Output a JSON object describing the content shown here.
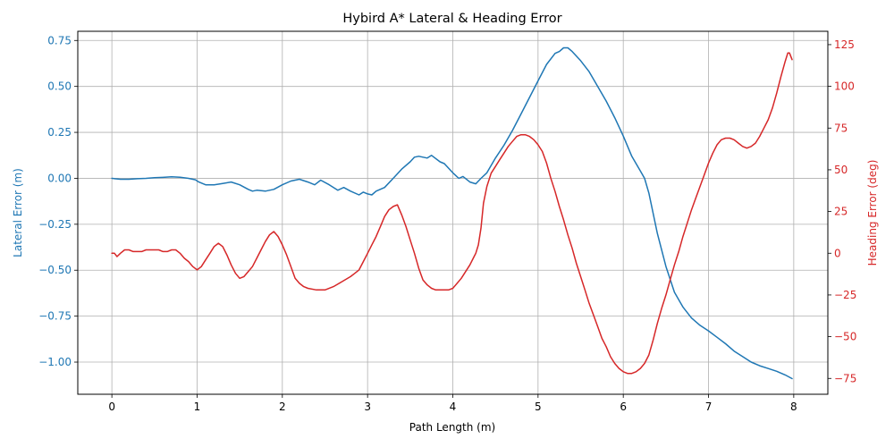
{
  "chart_data": {
    "type": "line",
    "title": "Hybird A* Lateral & Heading Error",
    "xlabel": "Path Length (m)",
    "ylabel_left": "Lateral Error (m)",
    "ylabel_right": "Heading Error (deg)",
    "xlim": [
      -0.4,
      8.4
    ],
    "ylim_left": [
      -1.175,
      0.8
    ],
    "ylim_right": [
      -84.5,
      133
    ],
    "xticks": [
      "0",
      "1",
      "2",
      "3",
      "4",
      "5",
      "6",
      "7",
      "8"
    ],
    "yticks_left": [
      "0.75",
      "0.50",
      "0.25",
      "0.00",
      "−0.25",
      "−0.50",
      "−0.75",
      "−1.00"
    ],
    "yticks_right": [
      "125",
      "100",
      "75",
      "50",
      "25",
      "0",
      "−25",
      "−50",
      "−75"
    ],
    "grid": true,
    "colors": {
      "lateral": "#1f77b4",
      "heading": "#d62728"
    },
    "series": [
      {
        "axis": "left",
        "x": [
          0,
          0.1,
          0.2,
          0.3,
          0.4,
          0.5,
          0.6,
          0.7,
          0.8,
          0.9,
          0.98,
          1.02,
          1.1,
          1.2,
          1.3,
          1.4,
          1.5,
          1.6,
          1.65,
          1.7,
          1.8,
          1.9,
          2.0,
          2.1,
          2.2,
          2.3,
          2.38,
          2.45,
          2.55,
          2.65,
          2.72,
          2.8,
          2.9,
          2.95,
          3.0,
          3.05,
          3.1,
          3.2,
          3.3,
          3.4,
          3.5,
          3.55,
          3.6,
          3.7,
          3.75,
          3.85,
          3.9,
          4.0,
          4.07,
          4.12,
          4.2,
          4.27,
          4.33,
          4.4,
          4.5,
          4.6,
          4.7,
          4.8,
          4.9,
          5.0,
          5.1,
          5.2,
          5.25,
          5.3,
          5.35,
          5.4,
          5.5,
          5.6,
          5.7,
          5.8,
          5.9,
          6.0,
          6.1,
          6.2,
          6.25,
          6.3,
          6.4,
          6.5,
          6.6,
          6.7,
          6.8,
          6.9,
          7.0,
          7.1,
          7.2,
          7.3,
          7.4,
          7.5,
          7.6,
          7.7,
          7.8,
          7.9,
          7.98
        ],
        "values": [
          0.0,
          -0.005,
          -0.005,
          -0.002,
          0.0,
          0.003,
          0.005,
          0.008,
          0.006,
          0.0,
          -0.008,
          -0.02,
          -0.035,
          -0.035,
          -0.028,
          -0.02,
          -0.035,
          -0.06,
          -0.07,
          -0.065,
          -0.07,
          -0.06,
          -0.035,
          -0.015,
          -0.005,
          -0.02,
          -0.035,
          -0.01,
          -0.035,
          -0.065,
          -0.05,
          -0.07,
          -0.09,
          -0.075,
          -0.085,
          -0.09,
          -0.07,
          -0.05,
          0.0,
          0.05,
          0.09,
          0.115,
          0.12,
          0.11,
          0.125,
          0.09,
          0.08,
          0.03,
          0.0,
          0.01,
          -0.02,
          -0.03,
          0.0,
          0.03,
          0.11,
          0.18,
          0.26,
          0.35,
          0.44,
          0.53,
          0.62,
          0.68,
          0.69,
          0.71,
          0.71,
          0.69,
          0.64,
          0.58,
          0.5,
          0.42,
          0.33,
          0.23,
          0.12,
          0.04,
          0.0,
          -0.08,
          -0.3,
          -0.48,
          -0.62,
          -0.7,
          -0.76,
          -0.8,
          -0.83,
          -0.865,
          -0.9,
          -0.94,
          -0.97,
          -1.0,
          -1.02,
          -1.035,
          -1.05,
          -1.07,
          -1.09
        ]
      },
      {
        "axis": "right",
        "x": [
          0,
          0.03,
          0.06,
          0.1,
          0.15,
          0.2,
          0.25,
          0.3,
          0.35,
          0.4,
          0.45,
          0.5,
          0.55,
          0.6,
          0.65,
          0.7,
          0.75,
          0.8,
          0.85,
          0.9,
          0.95,
          1.0,
          1.05,
          1.1,
          1.15,
          1.2,
          1.25,
          1.3,
          1.35,
          1.4,
          1.45,
          1.5,
          1.55,
          1.6,
          1.65,
          1.7,
          1.75,
          1.8,
          1.85,
          1.9,
          1.95,
          2.0,
          2.05,
          2.1,
          2.15,
          2.2,
          2.25,
          2.3,
          2.4,
          2.5,
          2.6,
          2.7,
          2.8,
          2.85,
          2.9,
          2.95,
          3.0,
          3.05,
          3.1,
          3.15,
          3.2,
          3.25,
          3.3,
          3.35,
          3.4,
          3.45,
          3.5,
          3.55,
          3.6,
          3.65,
          3.7,
          3.75,
          3.8,
          3.85,
          3.9,
          3.95,
          4.0,
          4.05,
          4.1,
          4.15,
          4.2,
          4.25,
          4.27,
          4.3,
          4.33,
          4.36,
          4.4,
          4.45,
          4.5,
          4.55,
          4.6,
          4.65,
          4.7,
          4.75,
          4.8,
          4.85,
          4.9,
          4.95,
          5.0,
          5.05,
          5.1,
          5.15,
          5.2,
          5.25,
          5.3,
          5.35,
          5.4,
          5.45,
          5.5,
          5.55,
          5.6,
          5.65,
          5.7,
          5.75,
          5.8,
          5.85,
          5.9,
          5.95,
          6.0,
          6.05,
          6.1,
          6.15,
          6.2,
          6.25,
          6.3,
          6.35,
          6.4,
          6.45,
          6.5,
          6.55,
          6.6,
          6.65,
          6.7,
          6.75,
          6.8,
          6.85,
          6.9,
          6.95,
          7.0,
          7.05,
          7.1,
          7.15,
          7.2,
          7.25,
          7.3,
          7.35,
          7.4,
          7.45,
          7.5,
          7.55,
          7.6,
          7.65,
          7.7,
          7.75,
          7.8,
          7.85,
          7.9,
          7.93,
          7.95,
          7.98
        ],
        "values": [
          0,
          0,
          -2,
          0,
          2,
          2,
          1,
          1,
          1,
          2,
          2,
          2,
          2,
          1,
          1,
          2,
          2,
          0,
          -3,
          -5,
          -8,
          -10,
          -8,
          -4,
          0,
          4,
          6,
          4,
          -1,
          -7,
          -12,
          -15,
          -14,
          -11,
          -8,
          -3,
          2,
          7,
          11,
          13,
          10,
          5,
          -1,
          -8,
          -15,
          -18,
          -20,
          -21,
          -22,
          -22,
          -20,
          -17,
          -14,
          -12,
          -10,
          -5,
          0,
          5,
          10,
          16,
          22,
          26,
          28,
          29,
          23,
          16,
          8,
          0,
          -9,
          -16,
          -19,
          -21,
          -22,
          -22,
          -22,
          -22,
          -21,
          -18,
          -15,
          -11,
          -7,
          -2,
          0,
          5,
          15,
          30,
          40,
          48,
          52,
          56,
          60,
          64,
          67,
          70,
          71,
          71,
          70,
          68,
          65,
          61,
          54,
          45,
          37,
          28,
          20,
          11,
          3,
          -6,
          -14,
          -22,
          -30,
          -37,
          -44,
          -51,
          -56,
          -62,
          -66,
          -69,
          -71,
          -72,
          -72,
          -71,
          -69,
          -66,
          -61,
          -52,
          -42,
          -33,
          -25,
          -16,
          -7,
          1,
          10,
          18,
          26,
          33,
          40,
          47,
          54,
          60,
          65,
          68,
          69,
          69,
          68,
          66,
          64,
          63,
          64,
          66,
          70,
          75,
          80,
          87,
          96,
          106,
          115,
          120,
          120,
          116
        ]
      }
    ]
  }
}
